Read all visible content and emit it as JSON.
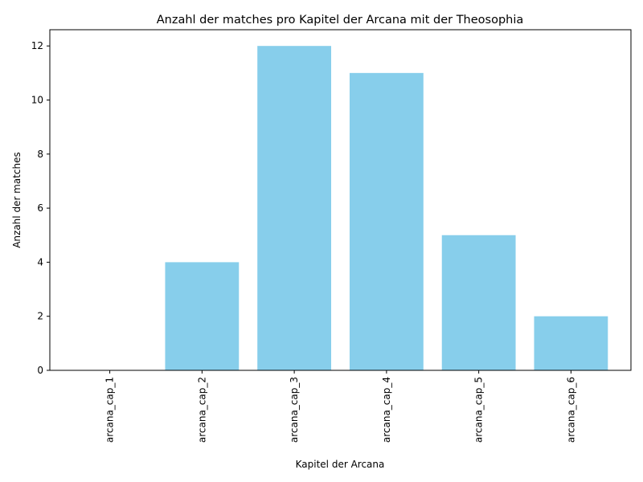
{
  "chart_data": {
    "type": "bar",
    "title": "Anzahl der matches pro Kapitel der Arcana mit der Theosophia",
    "xlabel": "Kapitel der Arcana",
    "ylabel": "Anzahl der matches",
    "categories": [
      "arcana_cap_1",
      "arcana_cap_2",
      "arcana_cap_3",
      "arcana_cap_4",
      "arcana_cap_5",
      "arcana_cap_6"
    ],
    "values": [
      0,
      4,
      12,
      11,
      5,
      2
    ],
    "ylim": [
      0,
      12.6
    ],
    "yticks": [
      0,
      2,
      4,
      6,
      8,
      10,
      12
    ],
    "bar_color": "#87CEEB",
    "grid": false,
    "legend": "none"
  }
}
